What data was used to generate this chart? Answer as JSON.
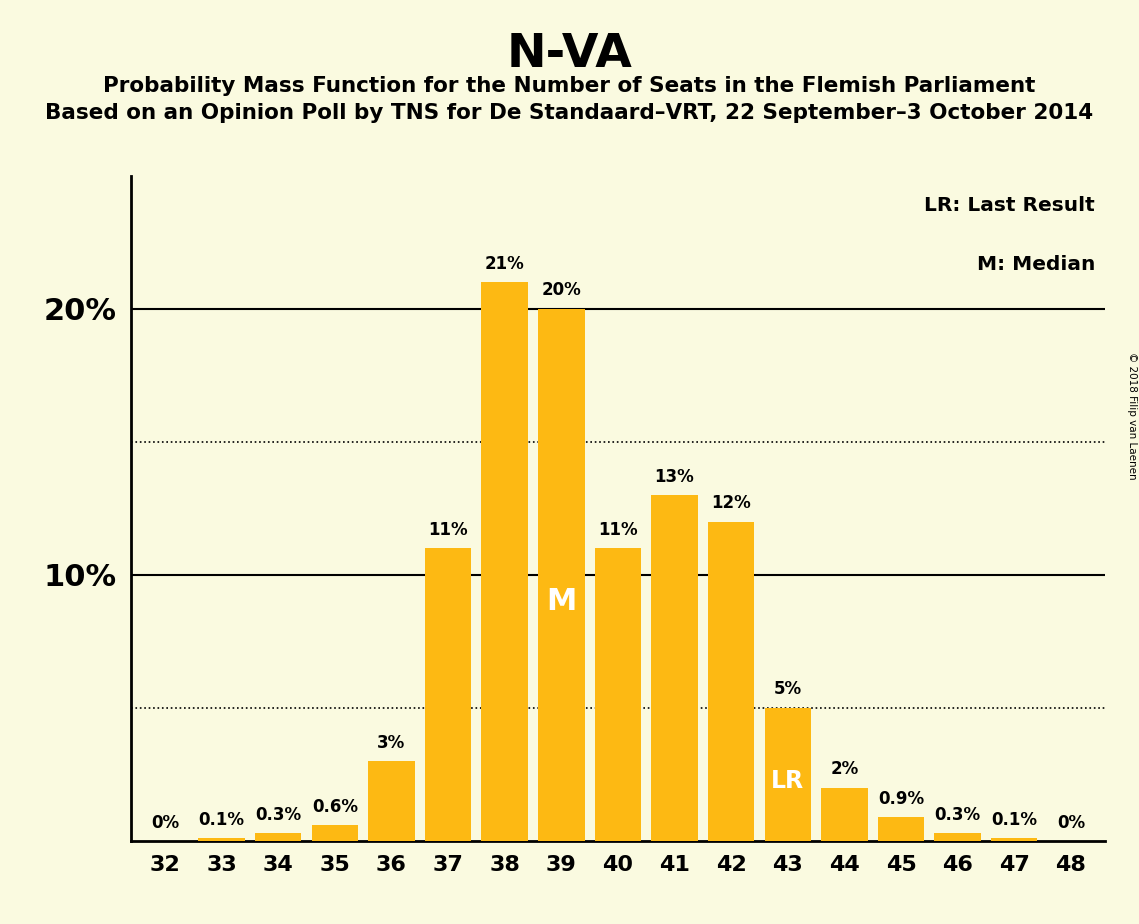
{
  "title": "N-VA",
  "subtitle1": "Probability Mass Function for the Number of Seats in the Flemish Parliament",
  "subtitle2": "Based on an Opinion Poll by TNS for De Standaard–VRT, 22 September–3 October 2014",
  "copyright": "© 2018 Filip van Laenen",
  "legend_lr": "LR: Last Result",
  "legend_m": "M: Median",
  "categories": [
    32,
    33,
    34,
    35,
    36,
    37,
    38,
    39,
    40,
    41,
    42,
    43,
    44,
    45,
    46,
    47,
    48
  ],
  "values": [
    0.0,
    0.1,
    0.3,
    0.6,
    3.0,
    11.0,
    21.0,
    20.0,
    11.0,
    13.0,
    12.0,
    5.0,
    2.0,
    0.9,
    0.3,
    0.1,
    0.0
  ],
  "labels": [
    "0%",
    "0.1%",
    "0.3%",
    "0.6%",
    "3%",
    "11%",
    "21%",
    "20%",
    "11%",
    "13%",
    "12%",
    "5%",
    "2%",
    "0.9%",
    "0.3%",
    "0.1%",
    "0%"
  ],
  "bar_color": "#FDB913",
  "background_color": "#FAFAE0",
  "median_bar": 39,
  "lr_bar": 43,
  "dotted_lines": [
    5.0,
    15.0
  ],
  "solid_lines": [
    10.0,
    20.0
  ],
  "ylim": [
    0,
    25
  ],
  "ytick_vals": [
    10,
    20
  ],
  "ytick_labels": [
    "10%",
    "20%"
  ]
}
